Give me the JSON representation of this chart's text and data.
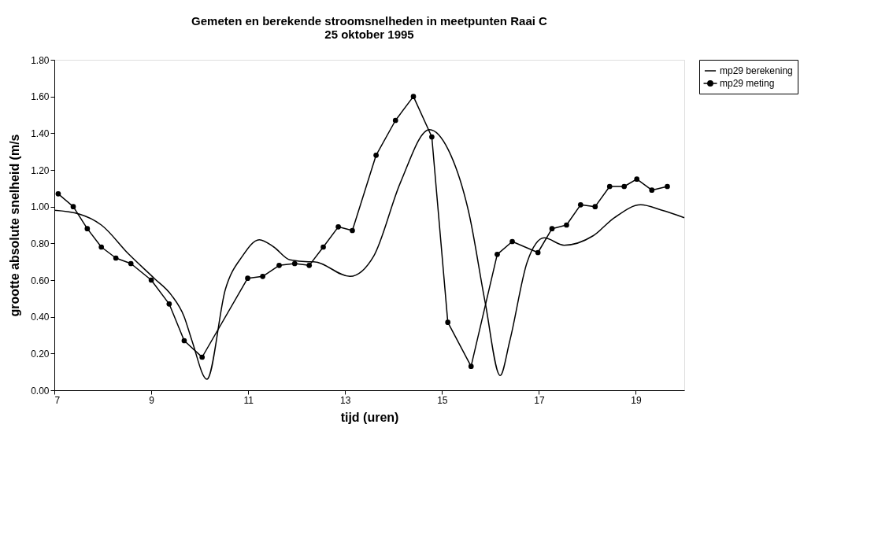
{
  "chart_data": {
    "type": "line",
    "title": [
      "Gemeten en berekende stroomsnelheden in meetpunten Raai C",
      "25 oktober 1995"
    ],
    "xlabel": "tijd (uren)",
    "ylabel": "grootte absolute snelheid  (m/s",
    "xlim": [
      7,
      20
    ],
    "xticks": [
      7,
      9,
      11,
      13,
      15,
      17,
      19
    ],
    "ylim": [
      0,
      1.8
    ],
    "yticks": [
      {
        "value": 0,
        "label": "0.00"
      },
      {
        "value": 0.2,
        "label": "0.20"
      },
      {
        "value": 0.4,
        "label": "0.40"
      },
      {
        "value": 0.6,
        "label": "0.60"
      },
      {
        "value": 0.8,
        "label": "0.80"
      },
      {
        "value": 1.0,
        "label": "1.00"
      },
      {
        "value": 1.2,
        "label": "1.20"
      },
      {
        "value": 1.4,
        "label": "1.40"
      },
      {
        "value": 1.6,
        "label": "1.60"
      },
      {
        "value": 1.8,
        "label": "1.80"
      }
    ],
    "grid": false,
    "legend": "right",
    "series": [
      {
        "name": "mp29 berekening",
        "color": "#000000",
        "marker": "none",
        "x": [
          7.0,
          7.51,
          7.97,
          8.54,
          9.06,
          9.41,
          9.68,
          9.84,
          10.15,
          10.53,
          10.88,
          11.23,
          11.53,
          11.86,
          12.24,
          12.35,
          13.1,
          13.59,
          14.14,
          14.74,
          15.13,
          15.56,
          15.89,
          16.2,
          16.4,
          16.76,
          17.11,
          17.52,
          18.11,
          18.56,
          19.1,
          19.54,
          20.0
        ],
        "values": [
          0.98,
          0.96,
          0.9,
          0.74,
          0.61,
          0.52,
          0.4,
          0.27,
          0.06,
          0.55,
          0.73,
          0.82,
          0.78,
          0.71,
          0.7,
          0.7,
          0.62,
          0.73,
          1.13,
          1.42,
          1.31,
          0.96,
          0.48,
          0.08,
          0.27,
          0.7,
          0.83,
          0.79,
          0.84,
          0.94,
          1.01,
          0.98,
          0.94
        ]
      },
      {
        "name": "mp29 meting",
        "color": "#000000",
        "marker": "circle",
        "x": [
          7.08,
          7.39,
          7.68,
          7.97,
          8.27,
          8.58,
          9.0,
          9.37,
          9.68,
          10.05,
          10.99,
          11.3,
          11.64,
          11.96,
          12.26,
          12.55,
          12.86,
          13.15,
          13.64,
          14.04,
          14.41,
          14.79,
          15.12,
          15.6,
          16.14,
          16.45,
          16.98,
          17.27,
          17.57,
          17.86,
          18.16,
          18.46,
          18.76,
          19.02,
          19.33,
          19.65
        ],
        "values": [
          1.07,
          1.0,
          0.88,
          0.78,
          0.72,
          0.69,
          0.6,
          0.47,
          0.27,
          0.18,
          0.61,
          0.62,
          0.68,
          0.69,
          0.68,
          0.78,
          0.89,
          0.87,
          1.28,
          1.47,
          1.6,
          1.38,
          0.37,
          0.13,
          0.74,
          0.81,
          0.75,
          0.88,
          0.9,
          1.01,
          1.0,
          1.11,
          1.11,
          1.15,
          1.09,
          1.11
        ]
      }
    ]
  }
}
